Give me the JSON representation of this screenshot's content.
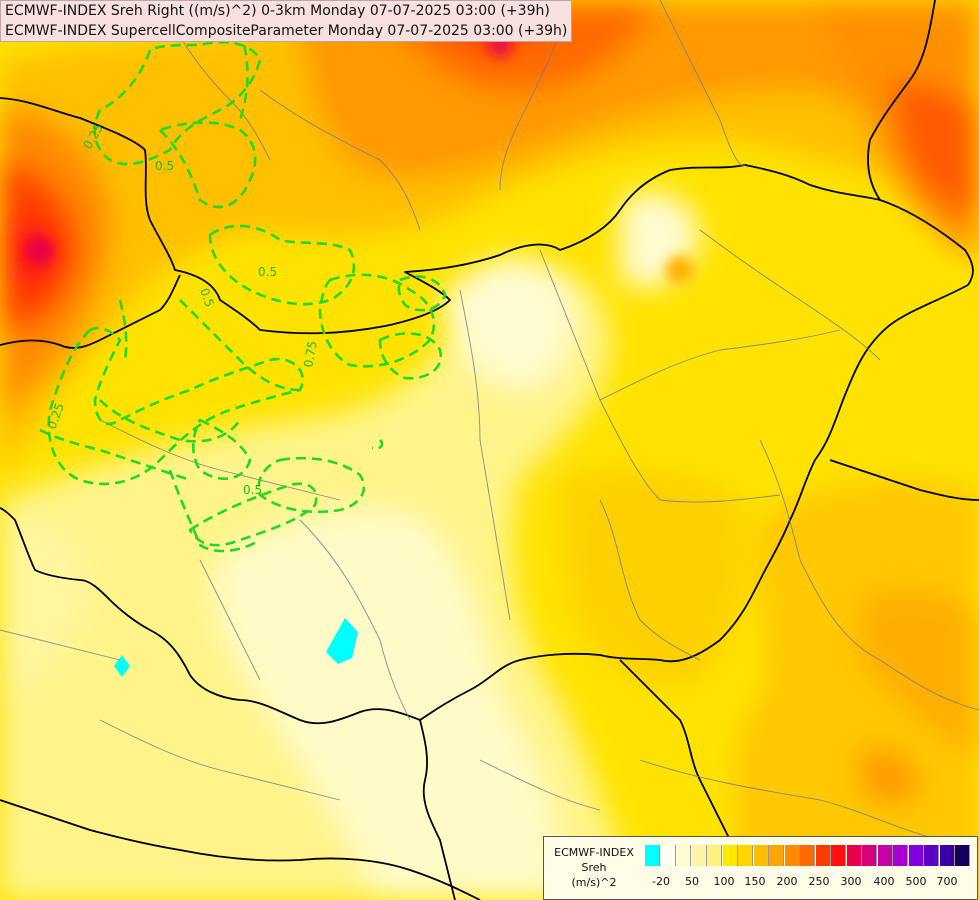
{
  "header": {
    "line1": "ECMWF-INDEX Sreh Right ((m/s)^2) 0-3km Monday 07-07-2025 03:00 (+39h)",
    "line2": "ECMWF-INDEX SupercellCompositeParameter Monday 07-07-2025 03:00 (+39h)"
  },
  "legend": {
    "title_line1": "ECMWF-INDEX",
    "title_line2": "Sreh",
    "title_line3": "(m/s)^2",
    "colors": [
      "#00ffff",
      "#fffff4",
      "#fffbd0",
      "#fff5a8",
      "#fff080",
      "#ffe900",
      "#ffd400",
      "#ffbf00",
      "#ffa400",
      "#ff8c00",
      "#ff6a00",
      "#ff3c00",
      "#ff1010",
      "#e8004a",
      "#d8007a",
      "#c800a8",
      "#a800d0",
      "#8000e0",
      "#5c00c8",
      "#3a00a8",
      "#14005a"
    ],
    "tick_labels": [
      "-20",
      "50",
      "100",
      "150",
      "200",
      "250",
      "300",
      "400",
      "500",
      "700"
    ]
  },
  "contours": {
    "color": "#22cc22",
    "labels": [
      "0.25",
      "0.5",
      "0.5",
      "0.75",
      "0.5",
      "0.25",
      "0.5"
    ]
  }
}
